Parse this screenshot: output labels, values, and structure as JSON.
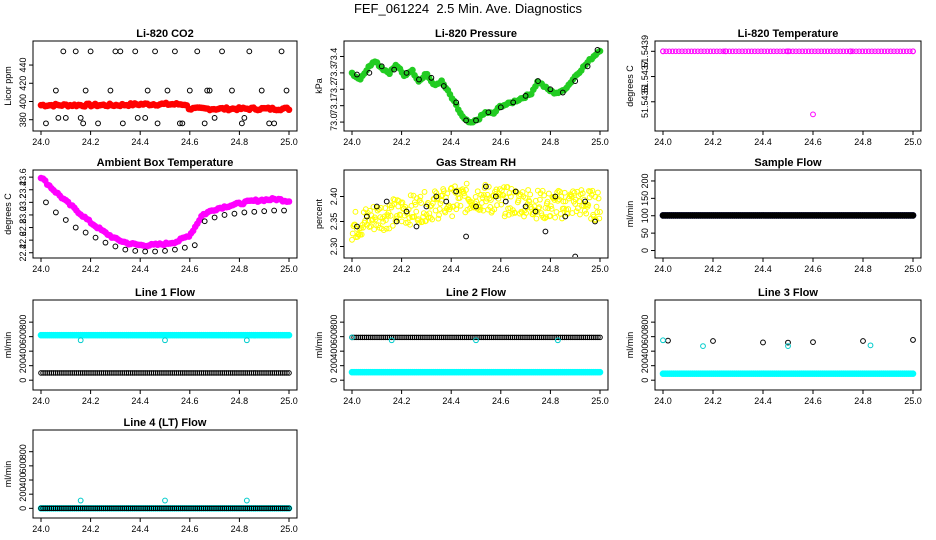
{
  "figure": {
    "title": "FEF_061224  2.5 Min. Ave. Diagnostics"
  },
  "chart_data": [
    {
      "type": "scatter",
      "title": "Li-820 CO2",
      "xlabel": "",
      "ylabel": "Licor ppm",
      "xlim": [
        24.0,
        25.0
      ],
      "ylim": [
        372,
        462
      ],
      "xticks": [
        "24.0",
        "24.2",
        "24.4",
        "24.6",
        "24.8",
        "25.0"
      ],
      "yticks": [
        "380",
        "400",
        "420",
        "440"
      ],
      "series": [
        {
          "name": "band",
          "color": "#ff0000",
          "marker": "dot",
          "x": [
            24.0,
            24.1,
            24.2,
            24.3,
            24.4,
            24.5,
            24.58,
            24.6,
            24.7,
            24.8,
            24.9,
            25.0
          ],
          "values": [
            396,
            396,
            396,
            396,
            397,
            397,
            397,
            392,
            392,
            392,
            392,
            392
          ]
        },
        {
          "name": "scatter",
          "color": "#000000",
          "marker": "circle",
          "x": [
            24.02,
            24.06,
            24.09,
            24.1,
            24.14,
            24.16,
            24.18,
            24.2,
            24.23,
            24.28,
            24.3,
            24.33,
            24.38,
            24.39,
            24.43,
            24.46,
            24.47,
            24.51,
            24.54,
            24.56,
            24.6,
            24.63,
            24.66,
            24.68,
            24.7,
            24.73,
            24.77,
            24.81,
            24.84,
            24.89,
            24.94,
            24.97,
            24.99,
            24.07,
            24.17,
            24.32,
            24.42,
            24.57,
            24.67,
            24.82,
            24.92
          ],
          "values": [
            376,
            412,
            455,
            382,
            455,
            382,
            412,
            455,
            376,
            412,
            455,
            376,
            455,
            382,
            412,
            455,
            376,
            412,
            455,
            376,
            412,
            455,
            376,
            412,
            382,
            455,
            412,
            376,
            455,
            412,
            376,
            455,
            412,
            382,
            376,
            455,
            382,
            376,
            412,
            382,
            376
          ]
        }
      ]
    },
    {
      "type": "scatter",
      "title": "Li-820 Pressure",
      "xlabel": "",
      "ylabel": "kPa",
      "xlim": [
        24.0,
        25.0
      ],
      "ylim": [
        72.97,
        73.47
      ],
      "xticks": [
        "24.0",
        "24.2",
        "24.4",
        "24.6",
        "24.8",
        "25.0"
      ],
      "yticks": [
        "73.0",
        "73.1",
        "73.2",
        "73.3",
        "73.4"
      ],
      "series": [
        {
          "name": "green",
          "color": "#22cc22",
          "marker": "dot",
          "x": [
            24.0,
            24.03,
            24.06,
            24.09,
            24.12,
            24.15,
            24.18,
            24.21,
            24.24,
            24.27,
            24.3,
            24.33,
            24.36,
            24.39,
            24.42,
            24.45,
            24.48,
            24.51,
            24.54,
            24.57,
            24.6,
            24.63,
            24.66,
            24.69,
            24.72,
            24.75,
            24.78,
            24.81,
            24.84,
            24.87,
            24.9,
            24.93,
            24.96,
            25.0
          ],
          "values": [
            73.3,
            73.26,
            73.32,
            73.38,
            73.33,
            73.3,
            73.35,
            73.28,
            73.32,
            73.25,
            73.3,
            73.22,
            73.25,
            73.18,
            73.1,
            73.02,
            72.99,
            73.02,
            73.06,
            73.05,
            73.1,
            73.11,
            73.13,
            73.15,
            73.17,
            73.25,
            73.21,
            73.18,
            73.18,
            73.22,
            73.28,
            73.33,
            73.38,
            73.44
          ]
        },
        {
          "name": "black",
          "color": "#000000",
          "marker": "circle",
          "x": [
            24.02,
            24.07,
            24.12,
            24.17,
            24.22,
            24.27,
            24.32,
            24.37,
            24.42,
            24.46,
            24.5,
            24.55,
            24.6,
            24.65,
            24.7,
            24.75,
            24.8,
            24.85,
            24.9,
            24.95,
            24.99
          ],
          "values": [
            73.29,
            73.3,
            73.34,
            73.32,
            73.3,
            73.26,
            73.27,
            73.22,
            73.12,
            73.01,
            73.01,
            73.06,
            73.09,
            73.12,
            73.16,
            73.25,
            73.2,
            73.18,
            73.25,
            73.34,
            73.44
          ]
        }
      ]
    },
    {
      "type": "scatter",
      "title": "Li-820 Temperature",
      "xlabel": "",
      "ylabel": "degrees C",
      "xlim": [
        24.0,
        25.0
      ],
      "ylim": [
        51.5433,
        51.54395
      ],
      "xticks": [
        "24.0",
        "24.2",
        "24.4",
        "24.6",
        "24.8",
        "25.0"
      ],
      "yticks": [
        "51.5435",
        "51.5437",
        "51.5439"
      ],
      "series": [
        {
          "name": "magenta",
          "color": "#ff00ff",
          "marker": "circle",
          "x": [
            24.0,
            24.25,
            24.5,
            24.75,
            25.0,
            24.6
          ],
          "values": [
            51.5439,
            51.5439,
            51.5439,
            51.5439,
            51.5439,
            51.5434
          ]
        }
      ]
    },
    {
      "type": "scatter",
      "title": "Ambient Box Temperature",
      "xlabel": "",
      "ylabel": "degrees C",
      "xlim": [
        24.0,
        25.0
      ],
      "ylim": [
        22.38,
        23.65
      ],
      "xticks": [
        "24.0",
        "24.2",
        "24.4",
        "24.6",
        "24.8",
        "25.0"
      ],
      "yticks": [
        "22.4",
        "22.6",
        "22.8",
        "23.0",
        "23.2",
        "23.4",
        "23.6"
      ],
      "series": [
        {
          "name": "magenta",
          "color": "#ff00ff",
          "marker": "dot",
          "x": [
            24.0,
            24.05,
            24.1,
            24.15,
            24.2,
            24.25,
            24.3,
            24.35,
            24.4,
            24.45,
            24.5,
            24.55,
            24.6,
            24.62,
            24.65,
            24.7,
            24.75,
            24.8,
            24.85,
            24.9,
            24.95,
            25.0
          ],
          "values": [
            23.6,
            23.4,
            23.22,
            23.05,
            22.88,
            22.74,
            22.62,
            22.55,
            22.52,
            22.52,
            22.54,
            22.58,
            22.68,
            22.8,
            23.0,
            23.09,
            23.14,
            23.18,
            23.22,
            23.24,
            23.25,
            23.22
          ]
        },
        {
          "name": "black",
          "color": "#000000",
          "marker": "circle",
          "x": [
            24.02,
            24.06,
            24.1,
            24.14,
            24.18,
            24.22,
            24.26,
            24.3,
            24.34,
            24.38,
            24.42,
            24.46,
            24.5,
            24.54,
            24.58,
            24.62,
            24.66,
            24.7,
            24.74,
            24.78,
            24.82,
            24.86,
            24.9,
            24.94,
            24.98
          ],
          "values": [
            23.2,
            23.04,
            22.92,
            22.8,
            22.72,
            22.64,
            22.56,
            22.5,
            22.45,
            22.43,
            22.42,
            22.42,
            22.43,
            22.45,
            22.48,
            22.52,
            22.9,
            22.96,
            23.0,
            23.02,
            23.04,
            23.05,
            23.06,
            23.07,
            23.07
          ]
        }
      ]
    },
    {
      "type": "scatter",
      "title": "Gas Stream RH",
      "xlabel": "",
      "ylabel": "percent",
      "xlim": [
        24.0,
        25.0
      ],
      "ylim": [
        2.285,
        2.445
      ],
      "xticks": [
        "24.0",
        "24.2",
        "24.4",
        "24.6",
        "24.8",
        "25.0"
      ],
      "yticks": [
        "2.30",
        "2.35",
        "2.40"
      ],
      "series": [
        {
          "name": "yellow",
          "color": "#ffff00",
          "marker": "circle",
          "x": [
            24.0,
            24.1,
            24.2,
            24.3,
            24.4,
            24.5,
            24.6,
            24.7,
            24.8,
            24.9,
            25.0
          ],
          "values": [
            2.34,
            2.36,
            2.37,
            2.38,
            2.39,
            2.4,
            2.39,
            2.39,
            2.38,
            2.39,
            2.38
          ],
          "spread": 0.06
        },
        {
          "name": "black",
          "color": "#000000",
          "marker": "circle",
          "x": [
            24.02,
            24.06,
            24.1,
            24.14,
            24.18,
            24.22,
            24.26,
            24.3,
            24.34,
            24.38,
            24.42,
            24.46,
            24.5,
            24.54,
            24.58,
            24.62,
            24.66,
            24.7,
            24.74,
            24.78,
            24.82,
            24.86,
            24.9,
            24.94,
            24.98
          ],
          "values": [
            2.34,
            2.36,
            2.38,
            2.39,
            2.35,
            2.37,
            2.34,
            2.38,
            2.4,
            2.39,
            2.41,
            2.32,
            2.38,
            2.42,
            2.4,
            2.39,
            2.41,
            2.38,
            2.37,
            2.33,
            2.4,
            2.36,
            2.28,
            2.39,
            2.35
          ]
        }
      ]
    },
    {
      "type": "scatter",
      "title": "Sample Flow",
      "xlabel": "",
      "ylabel": "ml/min",
      "xlim": [
        24.0,
        25.0
      ],
      "ylim": [
        -10,
        220
      ],
      "xticks": [
        "24.0",
        "24.2",
        "24.4",
        "24.6",
        "24.8",
        "25.0"
      ],
      "yticks": [
        "0",
        "50",
        "100",
        "150",
        "200"
      ],
      "series": [
        {
          "name": "blue",
          "color": "#0000cc",
          "marker": "dot",
          "x": [
            24.0,
            25.0
          ],
          "values": [
            101,
            101
          ]
        },
        {
          "name": "black",
          "color": "#000000",
          "marker": "dot",
          "x": [
            24.0,
            25.0
          ],
          "values": [
            101,
            101
          ]
        }
      ]
    },
    {
      "type": "scatter",
      "title": "Line 1 Flow",
      "xlabel": "",
      "ylabel": "ml/min",
      "xlim": [
        24.0,
        25.0
      ],
      "ylim": [
        -80,
        1050
      ],
      "xticks": [
        "24.0",
        "24.2",
        "24.4",
        "24.6",
        "24.8",
        "25.0"
      ],
      "yticks": [
        "0",
        "200",
        "400",
        "600",
        "800"
      ],
      "series": [
        {
          "name": "cyan",
          "color": "#00ffff",
          "marker": "dot",
          "x": [
            24.0,
            25.0
          ],
          "values": [
            620,
            620
          ]
        },
        {
          "name": "cyan-outliers",
          "color": "#00cccc",
          "marker": "circle",
          "x": [
            24.16,
            24.5,
            24.83
          ],
          "values": [
            550,
            550,
            550
          ]
        },
        {
          "name": "black",
          "color": "#000000",
          "marker": "circle",
          "x": [
            24.0,
            25.0
          ],
          "values": [
            100,
            100
          ]
        }
      ]
    },
    {
      "type": "scatter",
      "title": "Line 2 Flow",
      "xlabel": "",
      "ylabel": "ml/min",
      "xlim": [
        24.0,
        25.0
      ],
      "ylim": [
        -80,
        1050
      ],
      "xticks": [
        "24.0",
        "24.2",
        "24.4",
        "24.6",
        "24.8",
        "25.0"
      ],
      "yticks": [
        "0",
        "200",
        "400",
        "600",
        "800"
      ],
      "series": [
        {
          "name": "cyan",
          "color": "#00ffff",
          "marker": "dot",
          "x": [
            24.0,
            25.0
          ],
          "values": [
            110,
            110
          ]
        },
        {
          "name": "black",
          "color": "#000000",
          "marker": "circle",
          "x": [
            24.0,
            25.0
          ],
          "values": [
            590,
            590
          ]
        },
        {
          "name": "cyan-outliers",
          "color": "#00cccc",
          "marker": "circle",
          "x": [
            24.0,
            24.16,
            24.5,
            24.83
          ],
          "values": [
            590,
            550,
            550,
            550
          ]
        }
      ]
    },
    {
      "type": "scatter",
      "title": "Line 3 Flow",
      "xlabel": "",
      "ylabel": "ml/min",
      "xlim": [
        24.0,
        25.0
      ],
      "ylim": [
        -80,
        1050
      ],
      "xticks": [
        "24.0",
        "24.2",
        "24.4",
        "24.6",
        "24.8",
        "25.0"
      ],
      "yticks": [
        "0",
        "200",
        "400",
        "600",
        "800"
      ],
      "series": [
        {
          "name": "cyan",
          "color": "#00ffff",
          "marker": "dot",
          "x": [
            24.0,
            25.0
          ],
          "values": [
            90,
            90
          ]
        },
        {
          "name": "black",
          "color": "#000000",
          "marker": "circle",
          "x": [
            24.02,
            24.2,
            24.4,
            24.5,
            24.6,
            24.8,
            25.0
          ],
          "values": [
            545,
            540,
            520,
            518,
            525,
            540,
            555
          ]
        },
        {
          "name": "cyan-outliers",
          "color": "#00cccc",
          "marker": "circle",
          "x": [
            24.0,
            24.16,
            24.5,
            24.83
          ],
          "values": [
            550,
            470,
            470,
            480
          ]
        }
      ]
    },
    {
      "type": "scatter",
      "title": "Line 4 (LT) Flow",
      "xlabel": "",
      "ylabel": "ml/min",
      "xlim": [
        24.0,
        25.0
      ],
      "ylim": [
        -80,
        1050
      ],
      "xticks": [
        "24.0",
        "24.2",
        "24.4",
        "24.6",
        "24.8",
        "25.0"
      ],
      "yticks": [
        "0",
        "200",
        "400",
        "600",
        "800"
      ],
      "series": [
        {
          "name": "cyan",
          "color": "#00ffff",
          "marker": "dot",
          "x": [
            24.0,
            25.0
          ],
          "values": [
            0,
            0
          ]
        },
        {
          "name": "black",
          "color": "#000000",
          "marker": "circle",
          "x": [
            24.0,
            25.0
          ],
          "values": [
            0,
            0
          ]
        },
        {
          "name": "cyan-outliers",
          "color": "#00cccc",
          "marker": "circle",
          "x": [
            24.16,
            24.5,
            24.83
          ],
          "values": [
            110,
            110,
            110
          ]
        }
      ]
    }
  ]
}
